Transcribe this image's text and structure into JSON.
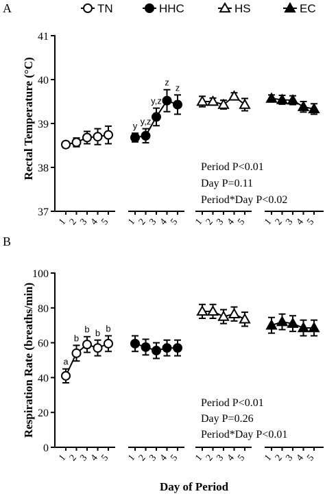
{
  "legend": [
    {
      "label": "TN",
      "marker": "circle-open"
    },
    {
      "label": "HHC",
      "marker": "circle-filled"
    },
    {
      "label": "HS",
      "marker": "triangle-open"
    },
    {
      "label": "EC",
      "marker": "triangle-filled"
    }
  ],
  "x_axis_title": "Day of Period",
  "chart_data": [
    {
      "panel_label": "A",
      "type": "scatter",
      "ylabel": "Rectal Temperature (°C)",
      "ylim": [
        37,
        41
      ],
      "yticks": [
        37,
        38,
        39,
        40,
        41
      ],
      "ytick_labels": [
        "37",
        "38",
        "39",
        "40",
        "41"
      ],
      "xtick_labels": [
        "1",
        "2",
        "3",
        "4",
        "5"
      ],
      "series": [
        {
          "name": "TN",
          "marker": "circle-open",
          "days": [
            1,
            2,
            3,
            4,
            5
          ],
          "values": [
            38.52,
            38.57,
            38.68,
            38.7,
            38.74
          ],
          "errors": [
            0.07,
            0.1,
            0.14,
            0.18,
            0.2
          ],
          "labels": [
            "",
            "",
            "",
            "",
            ""
          ]
        },
        {
          "name": "HHC",
          "marker": "circle-filled",
          "days": [
            1,
            2,
            3,
            4,
            5
          ],
          "values": [
            38.68,
            38.72,
            39.15,
            39.52,
            39.43
          ],
          "errors": [
            0.1,
            0.16,
            0.2,
            0.25,
            0.22
          ],
          "labels": [
            "y",
            "y,z",
            "y,z",
            "z",
            "z"
          ]
        },
        {
          "name": "HS",
          "marker": "triangle-open",
          "days": [
            1,
            2,
            3,
            4,
            5
          ],
          "values": [
            39.5,
            39.5,
            39.43,
            39.62,
            39.43
          ],
          "errors": [
            0.12,
            0.08,
            0.1,
            0.08,
            0.14
          ],
          "labels": [
            "",
            "",
            "",
            "",
            ""
          ]
        },
        {
          "name": "EC",
          "marker": "triangle-filled",
          "days": [
            1,
            2,
            3,
            4,
            5
          ],
          "values": [
            39.57,
            39.54,
            39.53,
            39.38,
            39.33
          ],
          "errors": [
            0.08,
            0.1,
            0.1,
            0.12,
            0.12
          ],
          "labels": [
            "",
            "",
            "",
            "",
            ""
          ]
        }
      ],
      "stats": [
        "Period P<0.01",
        "Day P=0.11",
        "Period*Day P<0.02"
      ]
    },
    {
      "panel_label": "B",
      "type": "scatter",
      "ylabel": "Respiration Rate (breaths/min)",
      "ylim": [
        0,
        100
      ],
      "yticks": [
        0,
        20,
        40,
        60,
        80,
        100
      ],
      "ytick_labels": [
        "0",
        "20",
        "40",
        "60",
        "80",
        "100"
      ],
      "xtick_labels": [
        "1",
        "2",
        "3",
        "4",
        "5"
      ],
      "series": [
        {
          "name": "TN",
          "marker": "circle-open",
          "days": [
            1,
            2,
            3,
            4,
            5
          ],
          "values": [
            41,
            54,
            59,
            57,
            59.5
          ],
          "errors": [
            4,
            4.5,
            4.5,
            4.5,
            4.5
          ],
          "labels": [
            "a",
            "b",
            "b",
            "b",
            "b"
          ]
        },
        {
          "name": "HHC",
          "marker": "circle-filled",
          "days": [
            1,
            2,
            3,
            4,
            5
          ],
          "values": [
            59.5,
            57.5,
            55.5,
            57,
            57
          ],
          "errors": [
            4.5,
            4.5,
            4.5,
            4.5,
            4.5
          ],
          "labels": [
            "",
            "",
            "",
            "",
            ""
          ]
        },
        {
          "name": "HS",
          "marker": "triangle-open",
          "days": [
            1,
            2,
            3,
            4,
            5
          ],
          "values": [
            78,
            78,
            75,
            76.5,
            73.5
          ],
          "errors": [
            4,
            4,
            4,
            4,
            4
          ],
          "labels": [
            "",
            "",
            "",
            "",
            ""
          ]
        },
        {
          "name": "EC",
          "marker": "triangle-filled",
          "days": [
            1,
            2,
            3,
            4,
            5
          ],
          "values": [
            70,
            72,
            71,
            68.5,
            68.5
          ],
          "errors": [
            4.5,
            4.5,
            4.5,
            4.5,
            4.5
          ],
          "labels": [
            "",
            "",
            "",
            "",
            ""
          ]
        }
      ],
      "stats": [
        "Period P<0.01",
        "Day P=0.26",
        "Period*Day P<0.01"
      ]
    }
  ]
}
